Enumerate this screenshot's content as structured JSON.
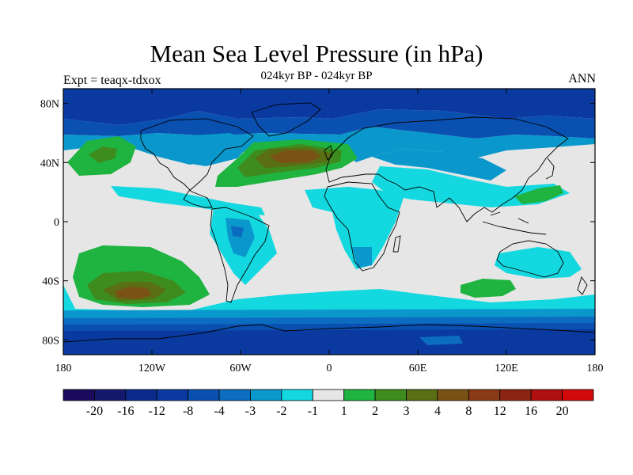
{
  "title": "Mean Sea Level Pressure (in hPa)",
  "subtitle": "024kyr BP - 024kyr BP",
  "left_label": "Expt = teaqx-tdxox",
  "right_label": "ANN",
  "map": {
    "projection": "cylindrical-equidistant",
    "lon_range": [
      -180,
      180
    ],
    "lat_range": [
      -90,
      90
    ],
    "lon_ticks": [
      {
        "value": -180,
        "label": "180"
      },
      {
        "value": -120,
        "label": "120W"
      },
      {
        "value": -60,
        "label": "60W"
      },
      {
        "value": 0,
        "label": "0"
      },
      {
        "value": 60,
        "label": "60E"
      },
      {
        "value": 120,
        "label": "120E"
      },
      {
        "value": 180,
        "label": "180"
      }
    ],
    "lat_ticks": [
      {
        "value": 80,
        "label": "80N"
      },
      {
        "value": 40,
        "label": "40N"
      },
      {
        "value": 0,
        "label": "0"
      },
      {
        "value": -40,
        "label": "40S"
      },
      {
        "value": -80,
        "label": "80S"
      }
    ],
    "background_color": "#e6e6e6"
  },
  "colorbar": {
    "colors": [
      "#1c0a5e",
      "#15196e",
      "#0c2a8c",
      "#0a3aa0",
      "#0a50b0",
      "#0c6cc0",
      "#0a98cc",
      "#14d8e0",
      "#e6e6e6",
      "#1fb340",
      "#3f8c1e",
      "#5a6e14",
      "#7a5216",
      "#8a3a14",
      "#8c2412",
      "#b01010",
      "#d40a0a"
    ],
    "labels": [
      "-20",
      "-16",
      "-12",
      "-8",
      "-4",
      "-3",
      "-2",
      "-1",
      "1",
      "2",
      "3",
      "4",
      "8",
      "12",
      "16",
      "20"
    ]
  }
}
